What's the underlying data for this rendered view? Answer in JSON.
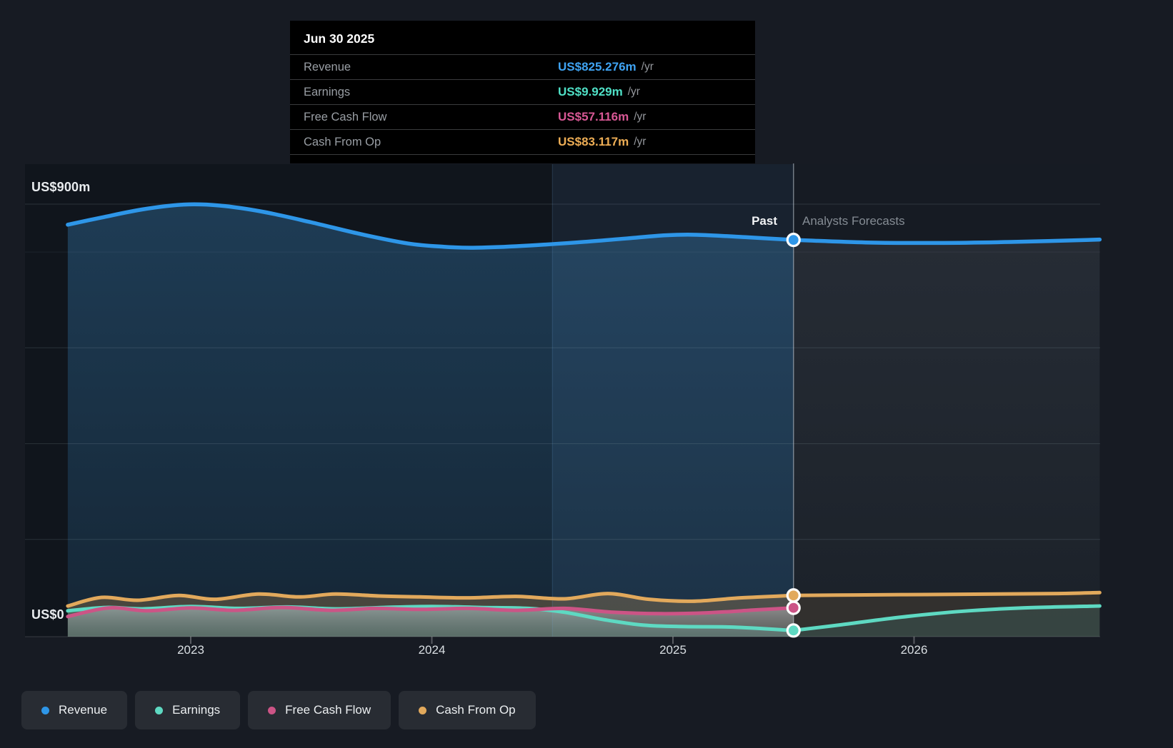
{
  "tooltip": {
    "title": "Jun 30 2025",
    "rows": [
      {
        "label": "Revenue",
        "value": "US$825.276m",
        "unit": "/yr",
        "color": "#3FA3F2"
      },
      {
        "label": "Earnings",
        "value": "US$9.929m",
        "unit": "/yr",
        "color": "#4FE0C6"
      },
      {
        "label": "Free Cash Flow",
        "value": "US$57.116m",
        "unit": "/yr",
        "color": "#D85895"
      },
      {
        "label": "Cash From Op",
        "value": "US$83.117m",
        "unit": "/yr",
        "color": "#EDAD55"
      }
    ]
  },
  "axis": {
    "y_top_label": "US$900m",
    "y_bottom_label": "US$0",
    "x_ticks": [
      "2023",
      "2024",
      "2025",
      "2026"
    ]
  },
  "regions": {
    "past_label": "Past",
    "forecast_label": "Analysts Forecasts"
  },
  "legend": {
    "items": [
      {
        "label": "Revenue",
        "color": "#2E96E8"
      },
      {
        "label": "Earnings",
        "color": "#5ED9C2"
      },
      {
        "label": "Free Cash Flow",
        "color": "#CC5486"
      },
      {
        "label": "Cash From Op",
        "color": "#E2A95C"
      }
    ]
  },
  "colors": {
    "page_bg": "#171B23",
    "plot_bg_past": "#10151C",
    "plot_bg_forecast": "#161B23",
    "highlight_band": "rgba(100,160,220,0.10)",
    "band_edge_line": "rgba(110,165,220,0.22)",
    "divider_line": "rgba(205,215,225,0.5)",
    "gridline": "rgba(160,175,190,0.18)",
    "axis_line": "rgba(255,255,255,0.08)",
    "tick_mark": "rgba(255,255,255,0.28)"
  },
  "chart_data": {
    "type": "area",
    "title": "Revenue, Earnings, Free Cash Flow and Cash From Op — Past and Analysts Forecasts",
    "unit": "US$m",
    "ylim": [
      0,
      900
    ],
    "xlim_years": [
      2022.49,
      2026.77
    ],
    "divider_year": 2025.5,
    "divider_date": "Jun 30 2025",
    "highlight_band_years": [
      2024.5,
      2025.5
    ],
    "gridline_values": [
      900,
      800,
      600,
      400,
      200
    ],
    "grid": "horizontal-only",
    "legend_position": "bottom-left",
    "series": [
      {
        "name": "Revenue",
        "color": "#2E96E8",
        "width": 5.5,
        "past": [
          [
            2022.49,
            857
          ],
          [
            2022.63,
            872
          ],
          [
            2022.8,
            889
          ],
          [
            2022.97,
            899
          ],
          [
            2023.12,
            897
          ],
          [
            2023.3,
            884
          ],
          [
            2023.5,
            862
          ],
          [
            2023.7,
            838
          ],
          [
            2023.9,
            818
          ],
          [
            2024.05,
            811
          ],
          [
            2024.17,
            809
          ],
          [
            2024.35,
            812
          ],
          [
            2024.6,
            820
          ],
          [
            2024.8,
            828
          ],
          [
            2024.97,
            835
          ],
          [
            2025.1,
            836
          ],
          [
            2025.3,
            831
          ],
          [
            2025.5,
            825.276
          ]
        ],
        "forecast": [
          [
            2025.5,
            825.276
          ],
          [
            2025.8,
            820
          ],
          [
            2026.1,
            819
          ],
          [
            2026.4,
            821
          ],
          [
            2026.77,
            826
          ]
        ]
      },
      {
        "name": "Earnings",
        "color": "#5ED9C2",
        "width": 5,
        "past": [
          [
            2022.49,
            51
          ],
          [
            2022.65,
            58
          ],
          [
            2022.8,
            55
          ],
          [
            2023.0,
            60
          ],
          [
            2023.2,
            56
          ],
          [
            2023.4,
            59
          ],
          [
            2023.6,
            55
          ],
          [
            2023.8,
            58
          ],
          [
            2024.0,
            60
          ],
          [
            2024.2,
            58
          ],
          [
            2024.4,
            56
          ],
          [
            2024.55,
            48
          ],
          [
            2024.72,
            32
          ],
          [
            2024.88,
            21
          ],
          [
            2025.05,
            18
          ],
          [
            2025.25,
            17
          ],
          [
            2025.5,
            9.929
          ]
        ],
        "forecast": [
          [
            2025.5,
            9.929
          ],
          [
            2025.7,
            22
          ],
          [
            2025.95,
            38
          ],
          [
            2026.2,
            50
          ],
          [
            2026.45,
            57
          ],
          [
            2026.77,
            61
          ]
        ]
      },
      {
        "name": "Free Cash Flow",
        "color": "#CC5486",
        "width": 5,
        "past": [
          [
            2022.49,
            39
          ],
          [
            2022.66,
            57
          ],
          [
            2022.82,
            51
          ],
          [
            2023.0,
            57
          ],
          [
            2023.18,
            52
          ],
          [
            2023.38,
            58
          ],
          [
            2023.58,
            52
          ],
          [
            2023.76,
            56
          ],
          [
            2023.95,
            54
          ],
          [
            2024.15,
            56
          ],
          [
            2024.35,
            52
          ],
          [
            2024.55,
            56
          ],
          [
            2024.75,
            48
          ],
          [
            2024.95,
            45
          ],
          [
            2025.15,
            47
          ],
          [
            2025.35,
            53
          ],
          [
            2025.5,
            57.116
          ]
        ],
        "forecast": []
      },
      {
        "name": "Cash From Op",
        "color": "#E2A95C",
        "width": 5,
        "past": [
          [
            2022.49,
            61
          ],
          [
            2022.63,
            79
          ],
          [
            2022.78,
            73
          ],
          [
            2022.95,
            83
          ],
          [
            2023.1,
            75
          ],
          [
            2023.28,
            86
          ],
          [
            2023.45,
            80
          ],
          [
            2023.6,
            86
          ],
          [
            2023.78,
            82
          ],
          [
            2023.95,
            80
          ],
          [
            2024.15,
            78
          ],
          [
            2024.35,
            81
          ],
          [
            2024.55,
            76
          ],
          [
            2024.73,
            87
          ],
          [
            2024.9,
            75
          ],
          [
            2025.08,
            71
          ],
          [
            2025.28,
            78
          ],
          [
            2025.5,
            83.117
          ]
        ],
        "forecast": [
          [
            2025.5,
            83.117
          ],
          [
            2025.75,
            84
          ],
          [
            2026.05,
            85
          ],
          [
            2026.35,
            86
          ],
          [
            2026.6,
            87
          ],
          [
            2026.77,
            89
          ]
        ]
      }
    ],
    "markers_at_divider": [
      {
        "series": "Revenue",
        "value": 825.276
      },
      {
        "series": "Cash From Op",
        "value": 83.117
      },
      {
        "series": "Free Cash Flow",
        "value": 57.116
      },
      {
        "series": "Earnings",
        "value": 9.929
      }
    ]
  }
}
